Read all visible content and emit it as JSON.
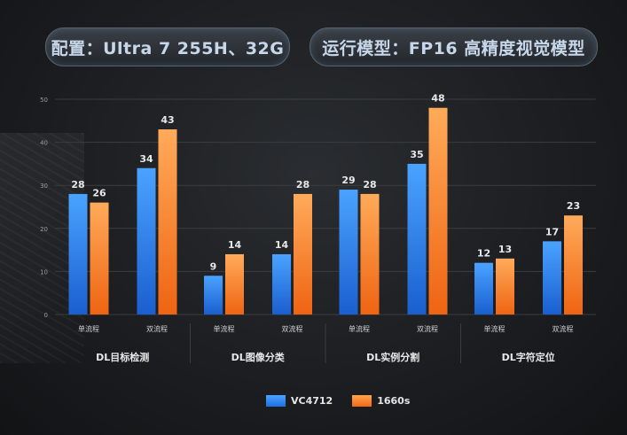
{
  "header": {
    "config_label": "配置：Ultra 7 255H、32G",
    "model_label": "运行模型：FP16 高精度视觉模型"
  },
  "colors": {
    "series_a": "#2f86f0",
    "series_b": "#f58a2e",
    "grid": "#3a3d41",
    "text": "#e8e8e8",
    "tick": "#9a9ea3"
  },
  "chart_data": {
    "type": "bar",
    "ylim": [
      0,
      50
    ],
    "yticks": [
      0,
      10,
      20,
      30,
      40,
      50
    ],
    "grid": true,
    "legend_position": "bottom",
    "groups": [
      {
        "name": "DL目标检测",
        "subcategories": [
          "单流程",
          "双流程"
        ]
      },
      {
        "name": "DL图像分类",
        "subcategories": [
          "单流程",
          "双流程"
        ]
      },
      {
        "name": "DL实例分割",
        "subcategories": [
          "单流程",
          "双流程"
        ]
      },
      {
        "name": "DL字符定位",
        "subcategories": [
          "单流程",
          "双流程"
        ]
      }
    ],
    "series": [
      {
        "name": "VC4712",
        "values": [
          28,
          34,
          9,
          14,
          29,
          35,
          12,
          17
        ]
      },
      {
        "name": "1660s",
        "values": [
          26,
          43,
          14,
          28,
          28,
          48,
          13,
          23
        ]
      }
    ]
  }
}
